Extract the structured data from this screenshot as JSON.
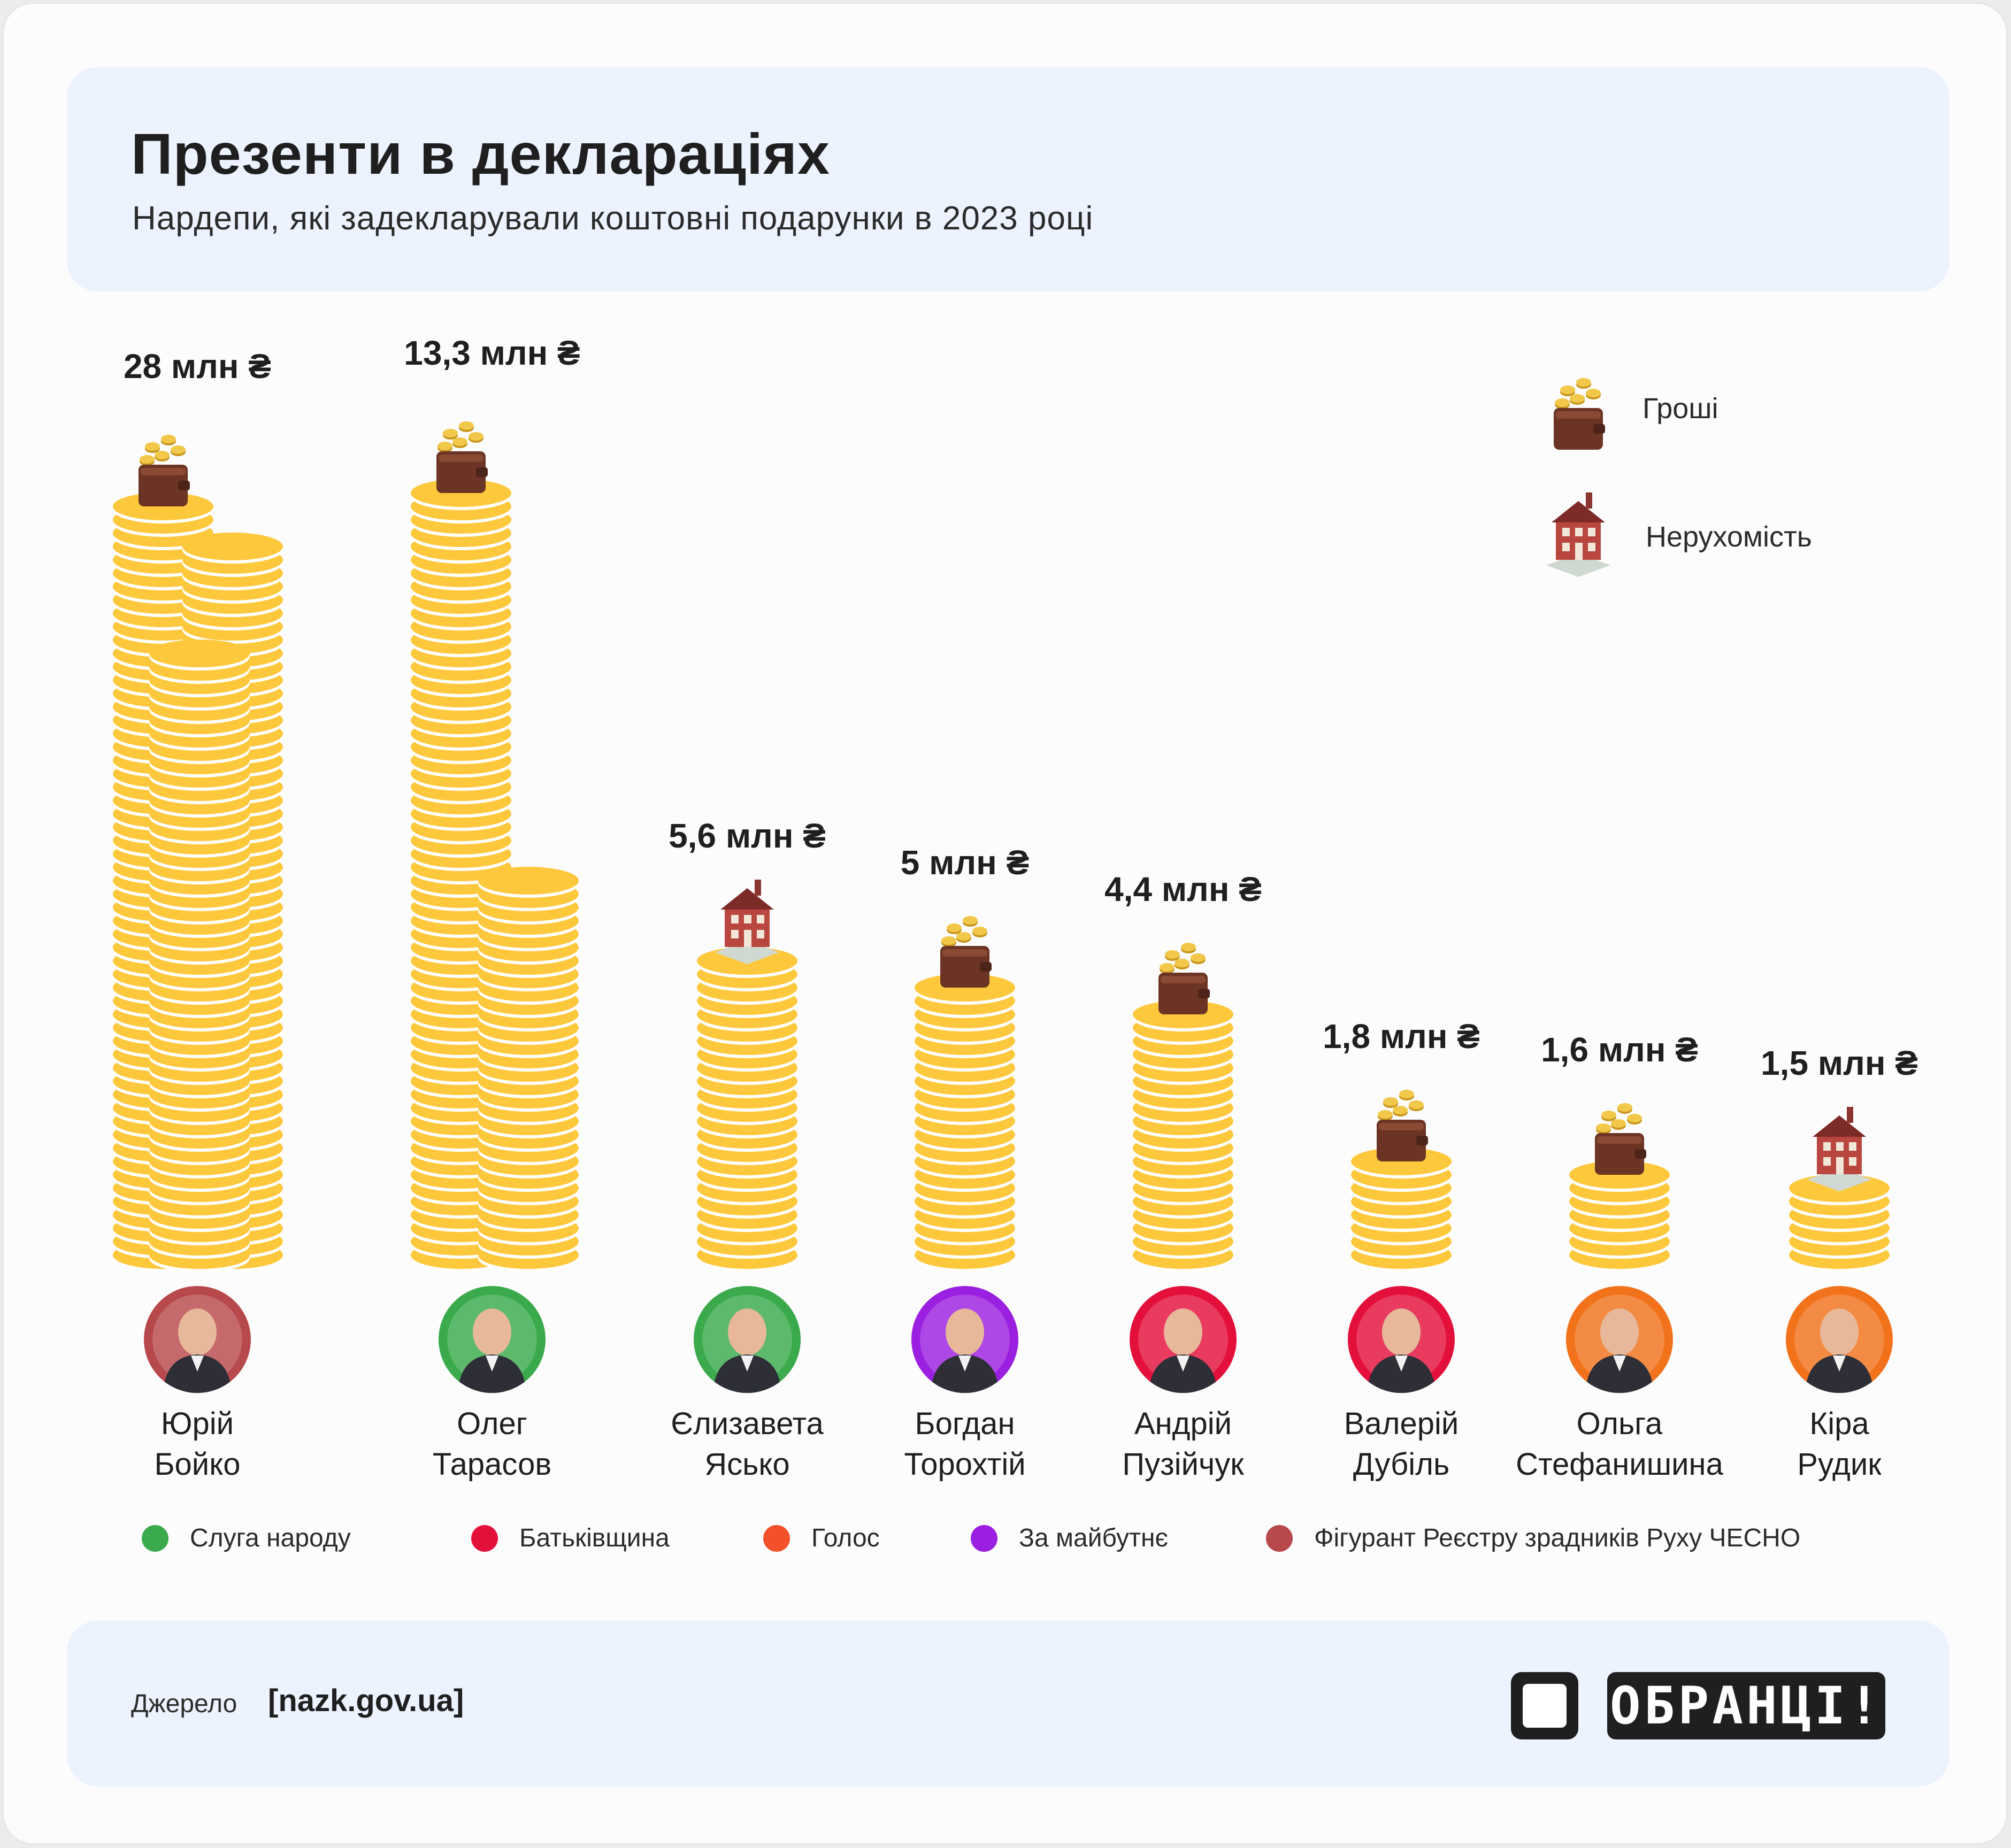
{
  "title": "Презенти в деклараціях",
  "subtitle": "Нардепи, які задекларували коштовні подарунки в 2023 році",
  "icon_legend": {
    "money": {
      "label": "Гроші",
      "icon": "wallet-coins-icon"
    },
    "realty": {
      "label": "Нерухомість",
      "icon": "house-icon"
    }
  },
  "chart_data": {
    "type": "bar",
    "unit_label": "млн ₴",
    "categories": [
      "Юрій Бойко",
      "Олег Тарасов",
      "Єлизавета Ясько",
      "Богдан Торохтій",
      "Андрій Пузійчук",
      "Валерій Дубіль",
      "Ольга Стефанишина",
      "Кіра Рудик"
    ],
    "values": [
      28,
      13.3,
      5.6,
      5,
      4.4,
      1.8,
      1.6,
      1.5
    ],
    "value_labels": [
      "28 млн ₴",
      "13,3 млн ₴",
      "5,6 млн ₴",
      "5 млн ₴",
      "4,4 млн ₴",
      "1,8 млн ₴",
      "1,6 млн ₴",
      "1,5 млн ₴"
    ],
    "gift_type": [
      "money",
      "money",
      "realty",
      "money",
      "money",
      "money",
      "money",
      "realty"
    ],
    "party": [
      "chesno",
      "sluha",
      "sluha",
      "maibutnie",
      "batkivshchyna",
      "batkivshchyna",
      "holos",
      "holos"
    ]
  },
  "people": [
    {
      "first": "Юрій",
      "last": "Бойко"
    },
    {
      "first": "Олег",
      "last": "Тарасов"
    },
    {
      "first": "Єлизавета",
      "last": "Ясько"
    },
    {
      "first": "Богдан",
      "last": "Торохтій"
    },
    {
      "first": "Андрій",
      "last": "Пузійчук"
    },
    {
      "first": "Валерій",
      "last": "Дубіль"
    },
    {
      "first": "Ольга",
      "last": "Стефанишина"
    },
    {
      "first": "Кіра",
      "last": "Рудик"
    }
  ],
  "parties": [
    {
      "key": "sluha",
      "label": "Слуга народу",
      "color": "#3aaa4c"
    },
    {
      "key": "batkivshchyna",
      "label": "Батьківщина",
      "color": "#e4103c"
    },
    {
      "key": "holos",
      "label": "Голос",
      "color": "#f4502a"
    },
    {
      "key": "maibutnie",
      "label": "За майбутнє",
      "color": "#9b1fe0"
    },
    {
      "key": "chesno",
      "label": "Фігурант Реєстру зрадників Руху ЧЕСНО",
      "color": "#b7484c"
    }
  ],
  "avatar_colors": {
    "chesno": "#b7484c",
    "sluha": "#3aaa4c",
    "maibutnie": "#9b1fe0",
    "batkivshchyna": "#e4103c",
    "holos": "#f2721c"
  },
  "coin_colors": {
    "coin": "#fec83c",
    "stripe": "#ffffff"
  },
  "footer": {
    "source_label": "Джерело",
    "source_link": "[nazk.gov.ua]",
    "logo_text": "ОБРАНЦІ!"
  }
}
